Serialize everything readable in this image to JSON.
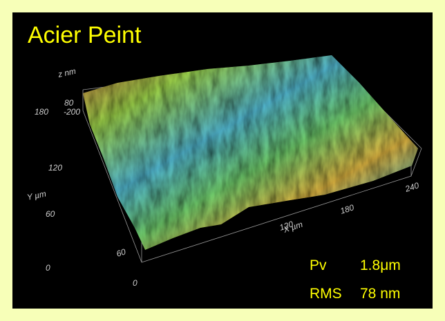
{
  "title": "Acier Peint",
  "axes": {
    "z_label": "z nm",
    "z_ticks": [
      "80",
      "-200"
    ],
    "y_label": "Y µm",
    "y_ticks": [
      "0",
      "60",
      "120",
      "180"
    ],
    "x_label": "X µm",
    "x_ticks": [
      "0",
      "60",
      "120",
      "180",
      "240"
    ]
  },
  "annotations": {
    "pv_label": "Pv",
    "pv_value": "1.8μm",
    "rms_label": "RMS",
    "rms_value": "78 nm"
  }
}
